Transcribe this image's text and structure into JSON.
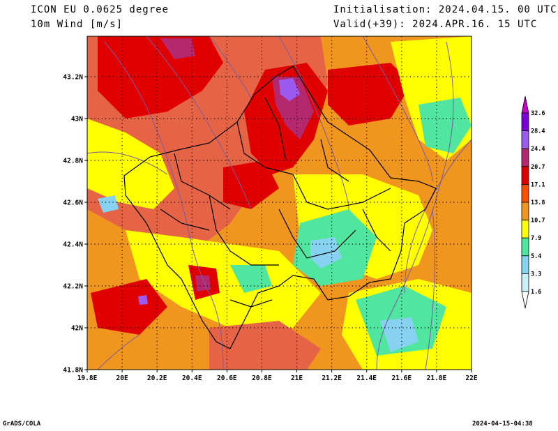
{
  "header": {
    "model": "ICON EU 0.0625 degree",
    "field": "10m Wind [m/s]",
    "init": "Initialisation: 2024.04.15. 00 UTC",
    "valid": "Valid(+39): 2024.APR.16. 15 UTC"
  },
  "footer": {
    "left": "GrADS/COLA",
    "right": "2024-04-15-04:38"
  },
  "axes": {
    "x_ticks": [
      "19.8E",
      "20E",
      "20.2E",
      "20.4E",
      "20.6E",
      "20.8E",
      "21E",
      "21.2E",
      "21.4E",
      "21.6E",
      "21.8E",
      "22E"
    ],
    "y_ticks": [
      "41.8N",
      "42N",
      "42.2N",
      "42.4N",
      "42.6N",
      "42.8N",
      "43N",
      "43.2N"
    ]
  },
  "legend": {
    "labels": [
      "32.6",
      "28.4",
      "24.4",
      "20.7",
      "17.1",
      "13.8",
      "10.7",
      "7.9",
      "5.4",
      "3.3",
      "1.6"
    ],
    "colors": [
      "#7B00DC",
      "#9B5AF0",
      "#B4286E",
      "#E10000",
      "#FA5000",
      "#F0961E",
      "#FFFF00",
      "#50E6A0",
      "#87D2F0",
      "#C8F0F5"
    ]
  },
  "colors": {
    "calm": "#50E6A0",
    "moderate": "#FFFF00",
    "fresh": "#F0961E",
    "strong": "#E66446",
    "gale": "#E10000",
    "storm": "#B4286E",
    "extreme": "#9B5AF0",
    "light": "#87D2F0",
    "streamline": "#7A5AA0",
    "border": "#000000"
  }
}
